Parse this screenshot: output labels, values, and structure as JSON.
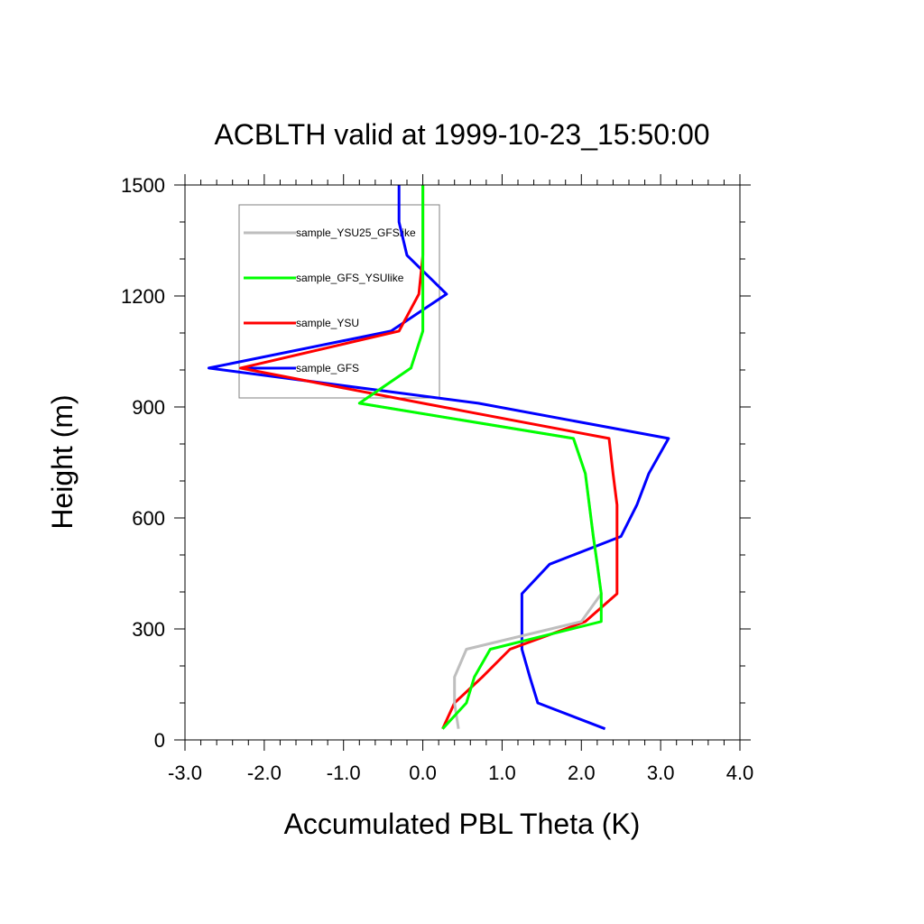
{
  "chart_data": {
    "type": "line",
    "title": "ACBLTH valid at 1999-10-23_15:50:00",
    "xlabel": "Accumulated PBL Theta (K)",
    "ylabel": "Height (m)",
    "xlim": [
      -3.0,
      4.0
    ],
    "ylim": [
      0,
      1500
    ],
    "xticks": [
      "-3.0",
      "-2.0",
      "-1.0",
      "0.0",
      "1.0",
      "2.0",
      "3.0",
      "4.0"
    ],
    "yticks": [
      "0",
      "300",
      "600",
      "900",
      "1200",
      "1500"
    ],
    "grid": false,
    "legend_position": "upper-left",
    "series": [
      {
        "name": "sample_YSU25_GFSlike",
        "color": "#bebebe",
        "points": [
          [
            0.45,
            30
          ],
          [
            0.4,
            100
          ],
          [
            0.4,
            170
          ],
          [
            0.55,
            245
          ],
          [
            2.0,
            320
          ],
          [
            2.25,
            395
          ],
          [
            2.2,
            475
          ],
          [
            2.15,
            550
          ],
          [
            2.1,
            635
          ],
          [
            2.05,
            720
          ],
          [
            1.9,
            815
          ],
          [
            -0.8,
            910
          ],
          [
            -0.15,
            1005
          ],
          [
            0.0,
            1105
          ],
          [
            0.0,
            1205
          ],
          [
            0.0,
            1310
          ],
          [
            0.0,
            1400
          ],
          [
            0.0,
            1500
          ]
        ]
      },
      {
        "name": "sample_GFS_YSUlike",
        "color": "#00ff00",
        "points": [
          [
            0.25,
            30
          ],
          [
            0.55,
            100
          ],
          [
            0.65,
            170
          ],
          [
            0.85,
            245
          ],
          [
            2.25,
            320
          ],
          [
            2.25,
            395
          ],
          [
            2.2,
            475
          ],
          [
            2.15,
            550
          ],
          [
            2.1,
            635
          ],
          [
            2.05,
            720
          ],
          [
            1.9,
            815
          ],
          [
            -0.8,
            910
          ],
          [
            -0.15,
            1005
          ],
          [
            0.0,
            1105
          ],
          [
            0.0,
            1205
          ],
          [
            0.0,
            1310
          ],
          [
            0.0,
            1400
          ],
          [
            0.0,
            1500
          ]
        ]
      },
      {
        "name": "sample_YSU",
        "color": "#ff0000",
        "points": [
          [
            0.25,
            30
          ],
          [
            0.4,
            100
          ],
          [
            0.75,
            170
          ],
          [
            1.1,
            245
          ],
          [
            2.05,
            320
          ],
          [
            2.45,
            395
          ],
          [
            2.45,
            475
          ],
          [
            2.45,
            550
          ],
          [
            2.45,
            635
          ],
          [
            2.4,
            720
          ],
          [
            2.35,
            815
          ],
          [
            0.0,
            910
          ],
          [
            -2.3,
            1005
          ],
          [
            -0.3,
            1105
          ],
          [
            -0.05,
            1205
          ],
          [
            0.0,
            1310
          ],
          [
            0.0,
            1400
          ],
          [
            0.0,
            1500
          ]
        ]
      },
      {
        "name": "sample_GFS",
        "color": "#0000ff",
        "points": [
          [
            2.3,
            30
          ],
          [
            1.45,
            100
          ],
          [
            1.35,
            170
          ],
          [
            1.25,
            245
          ],
          [
            1.25,
            320
          ],
          [
            1.25,
            395
          ],
          [
            1.6,
            475
          ],
          [
            2.5,
            550
          ],
          [
            2.7,
            635
          ],
          [
            2.85,
            720
          ],
          [
            3.1,
            815
          ],
          [
            0.7,
            910
          ],
          [
            -2.7,
            1005
          ],
          [
            -0.4,
            1105
          ],
          [
            0.3,
            1205
          ],
          [
            -0.2,
            1310
          ],
          [
            -0.3,
            1400
          ],
          [
            -0.3,
            1500
          ]
        ]
      }
    ]
  }
}
